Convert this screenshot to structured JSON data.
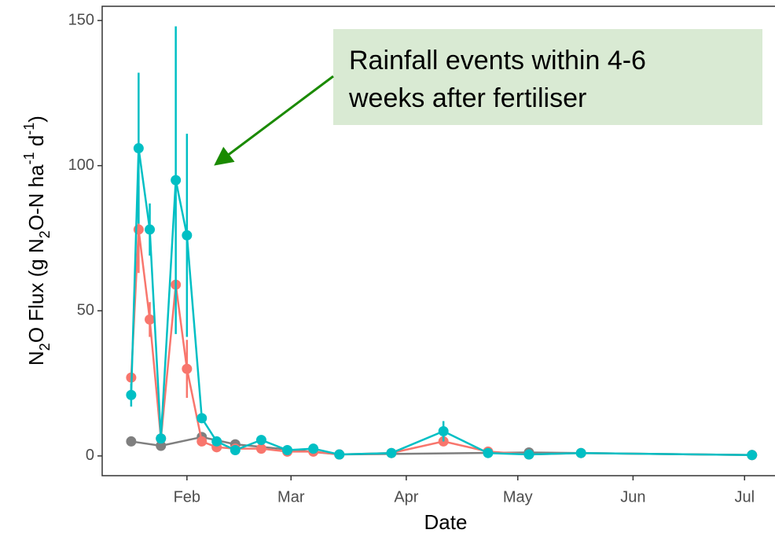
{
  "chart_data": {
    "type": "line",
    "xlabel": "Date",
    "ylabel": [
      "N",
      "2",
      "O Flux (g N",
      "2",
      "O-N ha",
      "-1",
      " d",
      "-1",
      ")"
    ],
    "annotation": [
      "Rainfall events within 4-6",
      "weeks after fertiliser"
    ],
    "xlim": [
      9.2,
      190.4
    ],
    "ylim": [
      -6.8,
      154.9
    ],
    "xticks": [
      {
        "value": 32,
        "label": "Feb"
      },
      {
        "value": 60,
        "label": "Mar"
      },
      {
        "value": 91,
        "label": "Apr"
      },
      {
        "value": 121,
        "label": "May"
      },
      {
        "value": 152,
        "label": "Jun"
      },
      {
        "value": 182,
        "label": "Jul"
      }
    ],
    "yticks": [
      0,
      50,
      100,
      150
    ],
    "grid": false,
    "series": [
      {
        "color": "#7f7f7f",
        "x": [
          17,
          25,
          36,
          45,
          73,
          124,
          184
        ],
        "values": [
          5,
          3.5,
          6.5,
          4,
          0.5,
          1.2,
          0.3
        ],
        "errors": [
          null,
          null,
          null,
          null,
          null,
          null,
          null
        ]
      },
      {
        "color": "#f8766d",
        "x": [
          17,
          19,
          22,
          25,
          29,
          32,
          36,
          40,
          45,
          52,
          59,
          66,
          73,
          87,
          101,
          113,
          124,
          138,
          184
        ],
        "values": [
          27,
          78,
          47,
          6,
          59,
          30,
          5,
          3,
          2.5,
          2.5,
          1.5,
          1.5,
          0.5,
          1,
          5,
          1.5,
          0.5,
          1,
          0.3
        ],
        "errors": [
          null,
          15,
          6,
          null,
          null,
          10,
          null,
          null,
          null,
          null,
          null,
          null,
          null,
          null,
          null,
          null,
          null,
          null,
          null
        ]
      },
      {
        "color": "#00bfc4",
        "x": [
          17,
          19,
          22,
          25,
          29,
          32,
          36,
          40,
          45,
          52,
          59,
          66,
          73,
          87,
          101,
          113,
          124,
          138,
          184
        ],
        "values": [
          21,
          106,
          78,
          6,
          95,
          76,
          13,
          5,
          2,
          5.5,
          2,
          2.5,
          0.5,
          1,
          8.5,
          1,
          0.5,
          1,
          0.3
        ],
        "errors": [
          4,
          26,
          9,
          null,
          53,
          35,
          null,
          null,
          null,
          1.5,
          null,
          null,
          null,
          null,
          3.5,
          null,
          null,
          null,
          null
        ]
      }
    ]
  }
}
